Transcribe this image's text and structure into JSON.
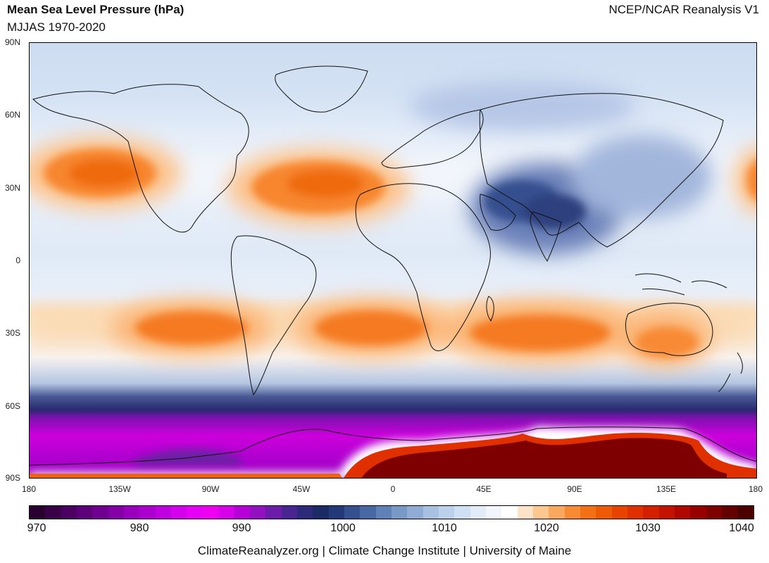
{
  "header": {
    "title": "Mean Sea Level Pressure (hPa)",
    "subtitle": "MJJAS 1970-2020",
    "source": "NCEP/NCAR Reanalysis V1"
  },
  "map": {
    "lat_ticks": [
      "90N",
      "60N",
      "30N",
      "0",
      "30S",
      "60S",
      "90S"
    ],
    "lon_ticks": [
      "180",
      "135W",
      "90W",
      "45W",
      "0",
      "45E",
      "90E",
      "135E",
      "180"
    ],
    "features": {
      "north_pacific_high": "north-pacific-high",
      "azores_high": "azores-high",
      "south_pacific_high": "south-pacific-high",
      "south_atlantic_high": "south-atlantic-high",
      "indian_ocean_high": "indian-ocean-high",
      "asian_low": "asian-monsoon-low",
      "antarctic_high": "antarctic-high",
      "circumpolar_trough": "circumpolar-trough"
    }
  },
  "colorbar": {
    "tick_labels": [
      "970",
      "980",
      "990",
      "1000",
      "1010",
      "1020",
      "1030",
      "1040"
    ],
    "colors": [
      "#2a0030",
      "#3a0048",
      "#4c0062",
      "#5e007a",
      "#700090",
      "#8400a6",
      "#9800bc",
      "#ac00d0",
      "#c000e0",
      "#d400ee",
      "#e600f6",
      "#f000f0",
      "#d800e8",
      "#b800d8",
      "#9210c0",
      "#6c1ca8",
      "#4a2490",
      "#2e2a7a",
      "#1c2a66",
      "#243a78",
      "#34508e",
      "#4868a4",
      "#6080b8",
      "#7898c8",
      "#90acd6",
      "#a8c0e2",
      "#bcd0ec",
      "#d0e0f4",
      "#e2ecf8",
      "#f2f6fc",
      "#ffffff",
      "#fde4c8",
      "#fcc890",
      "#faa860",
      "#f88a34",
      "#f47014",
      "#ee5a06",
      "#e84400",
      "#e03000",
      "#d42000",
      "#c41200",
      "#b00800",
      "#980000",
      "#7e0000",
      "#640000",
      "#4c0000"
    ]
  },
  "footer": {
    "credit": "ClimateReanalyzer.org | Climate Change Institute | University of Maine"
  }
}
